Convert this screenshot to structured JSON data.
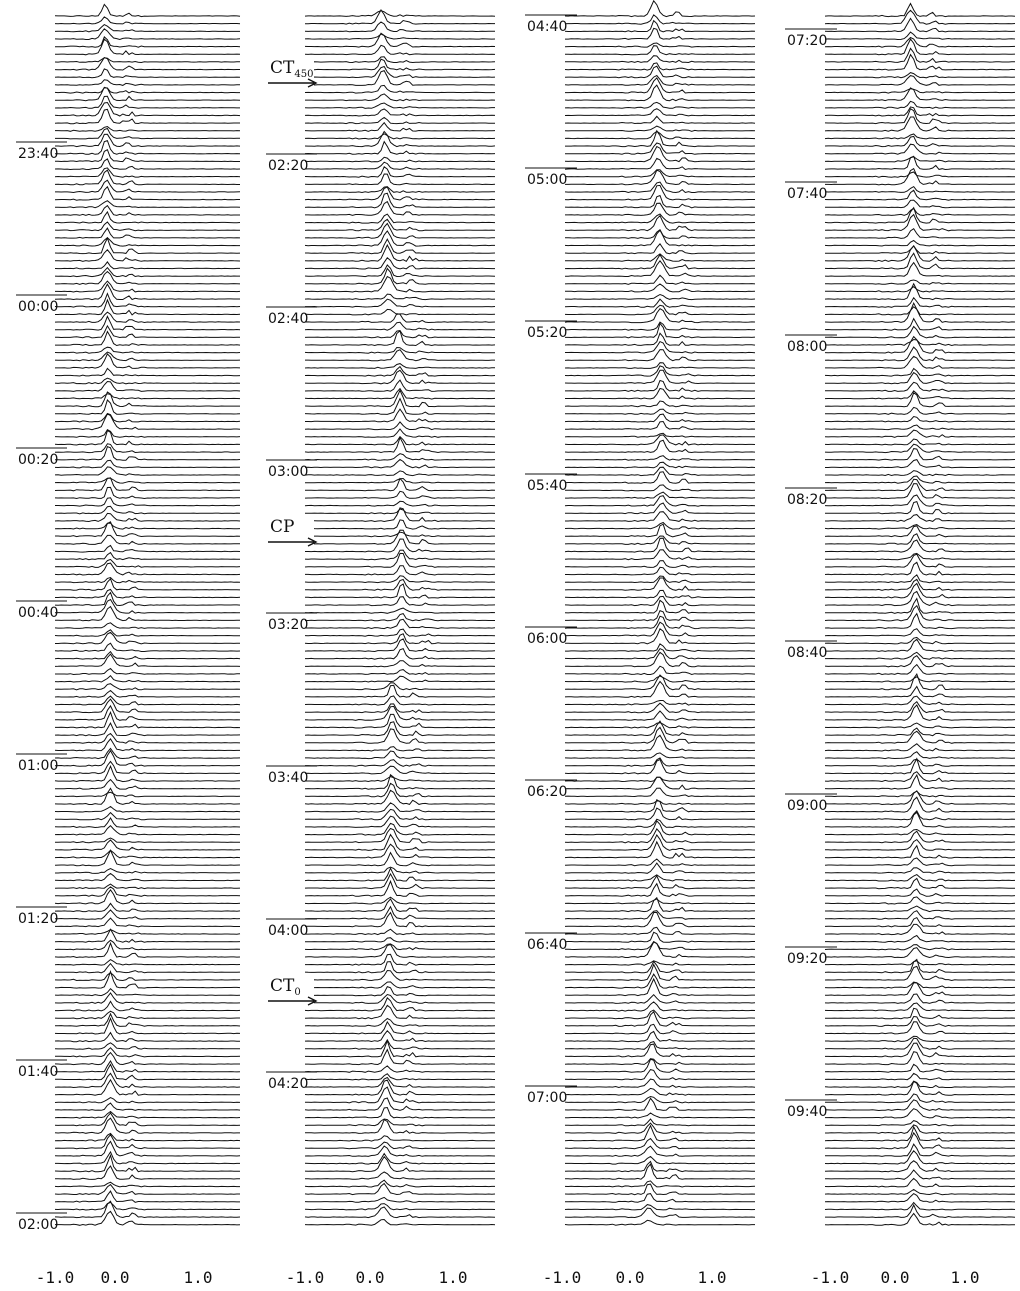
{
  "chart_data": {
    "type": "line",
    "description_panels": 4,
    "xlim": [
      -1.0,
      1.0
    ],
    "x_ticks": [
      "-1.0",
      "0.0",
      "1.0"
    ],
    "panels": [
      {
        "time_labels": [
          "23:40",
          "00:00",
          "00:20",
          "00:40",
          "01:00",
          "01:20",
          "01:40",
          "02:00"
        ],
        "markers": []
      },
      {
        "time_labels": [
          "02:20",
          "02:40",
          "03:00",
          "03:20",
          "03:40",
          "04:00",
          "04:20"
        ],
        "markers": [
          {
            "text": "CT",
            "sub": "450",
            "before_label": "02:20"
          },
          {
            "text": "CP",
            "sub": "",
            "before_label": "03:20"
          },
          {
            "text": "CT",
            "sub": "0",
            "before_label": "04:20"
          }
        ]
      },
      {
        "time_labels": [
          "04:40",
          "05:00",
          "05:20",
          "05:40",
          "06:00",
          "06:20",
          "06:40",
          "07:00"
        ],
        "markers": []
      },
      {
        "time_labels": [
          "07:20",
          "07:40",
          "08:00",
          "08:20",
          "08:40",
          "09:00",
          "09:20",
          "09:40"
        ],
        "markers": []
      }
    ],
    "trace_color": "#111111"
  }
}
